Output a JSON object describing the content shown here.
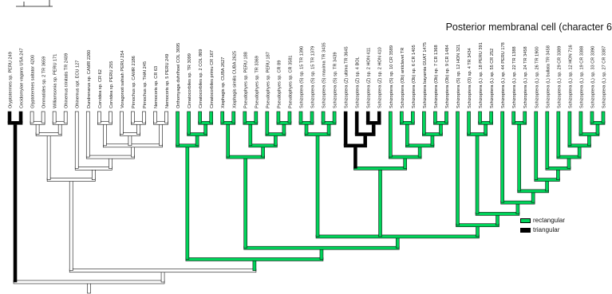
{
  "title": "Posterior membranal cell (character 6",
  "legend": [
    {
      "label": "rectangular",
      "color": "#00d45a"
    },
    {
      "label": "triangular",
      "color": "#000000"
    }
  ],
  "colors": {
    "white": "#ffffff",
    "outline": "#111111"
  },
  "taxa": [
    {
      "name": "Oryptotermes sp. PERU 249",
      "state": "black"
    },
    {
      "name": "Cecidomyiae vagans USA 247",
      "state": "black"
    },
    {
      "name": "Glyptotermes saltator 4200",
      "state": "white"
    },
    {
      "name": "Ommatides sp. 2 TR 3659",
      "state": "white"
    },
    {
      "name": "Williamsonia sp. PERU 171",
      "state": "white"
    },
    {
      "name": "Ohinemus trinitatis TR 2409",
      "state": "white"
    },
    {
      "name": "Ohinemus spt. ECU 127",
      "state": "white"
    },
    {
      "name": "Dundrenarus sp. CAMR 2260",
      "state": "white"
    },
    {
      "name": "Corvidea sp. CR 62",
      "state": "white"
    },
    {
      "name": "Corvidea sp. PERU 255",
      "state": "white"
    },
    {
      "name": "Voragonoti sahiah PERU 254",
      "state": "white"
    },
    {
      "name": "Pirnochus sp. CAMR 2186",
      "state": "white"
    },
    {
      "name": "Pirnochus sp. THAI 245",
      "state": "white"
    },
    {
      "name": "Nemocoris sp. CR 63",
      "state": "white"
    },
    {
      "name": "Nemocoris sp. 5 PERU 249",
      "state": "white"
    },
    {
      "name": "Orthomyaga duhrlhoei COL 3695",
      "state": "green"
    },
    {
      "name": "Cimatocorbiles sp. TR 3099",
      "state": "green"
    },
    {
      "name": "Cimatocorbiles sp. 2 COL 869",
      "state": "green"
    },
    {
      "name": "Cimatocorbiles primu CR 167",
      "state": "green"
    },
    {
      "name": "Xiophagis sp. CUBA 2627",
      "state": "green"
    },
    {
      "name": "Xiophagis similis CUBA 2625",
      "state": "green"
    },
    {
      "name": "Pseudophyes sp. PERU 188",
      "state": "green"
    },
    {
      "name": "Pseudophyes sp. TR 3369",
      "state": "green"
    },
    {
      "name": "Pseudophyes sp. PERU 187",
      "state": "green"
    },
    {
      "name": "Pseudophyes sp. CR 89",
      "state": "green"
    },
    {
      "name": "Pseudophyes sp. CR 3581",
      "state": "green"
    },
    {
      "name": "Schizoptera (S) sp. 15 TR 1390",
      "state": "green"
    },
    {
      "name": "Schizoptera (S) sp. 15 TR 1379",
      "state": "green"
    },
    {
      "name": "Schizoptera (S) maxima TR 3435",
      "state": "green"
    },
    {
      "name": "Schizoptera (S) sp. TR 3439",
      "state": "green"
    },
    {
      "name": "Schizoptera (Z) ultima TR 3645",
      "state": "black"
    },
    {
      "name": "Schizoptera (Z) sp. 4 BOL",
      "state": "black"
    },
    {
      "name": "Schizoptera (Z) sp. 2 HON 411",
      "state": "black"
    },
    {
      "name": "Schizoptera (Z) sp. 2 HON 410",
      "state": "black"
    },
    {
      "name": "Schizoptera (S) sp. 10 CR 3589",
      "state": "green"
    },
    {
      "name": "Schizoptera (Ob) anticlavet TR",
      "state": "green"
    },
    {
      "name": "Schizoptera (Ob) sp. 6 CR 1405",
      "state": "green"
    },
    {
      "name": "Schizoptera bayamia GUAT 1475",
      "state": "green"
    },
    {
      "name": "Schizoptera (Ob) sp. 7 CR 1368",
      "state": "green"
    },
    {
      "name": "Schizoptera (Ob) sp. 9 CR 1484",
      "state": "green"
    },
    {
      "name": "Schizoptera (S) sp. 12 HON 321",
      "state": "green"
    },
    {
      "name": "Schizoptera (O) sp. 4 TR 3434",
      "state": "green"
    },
    {
      "name": "Schizoptera (L) sp. 18 PERU 391",
      "state": "green"
    },
    {
      "name": "Schizoptera (L) sp. 55 CR 252",
      "state": "green"
    },
    {
      "name": "Schizoptera (L) sp. 44 PERU 178",
      "state": "green"
    },
    {
      "name": "Schizoptera (L) sp. 22 TR 1388",
      "state": "green"
    },
    {
      "name": "Schizoptera (L) sp. 24 TR 3458",
      "state": "green"
    },
    {
      "name": "Schizoptera (L) sp. 26 TR 1900",
      "state": "green"
    },
    {
      "name": "Schizoptera (L) bullata TR 3458",
      "state": "green"
    },
    {
      "name": "Schizoptera (L) sp. 29 CR 3389",
      "state": "green"
    },
    {
      "name": "Schizoptera (L) sp. 12 HON 716",
      "state": "green"
    },
    {
      "name": "Schizoptera (L) sp. 19 CR 3388",
      "state": "green"
    },
    {
      "name": "Schizoptera (L) sp. 33 CR 3390",
      "state": "green"
    },
    {
      "name": "Schizoptera (L) sp. 27 CR 3387",
      "state": "green"
    }
  ]
}
